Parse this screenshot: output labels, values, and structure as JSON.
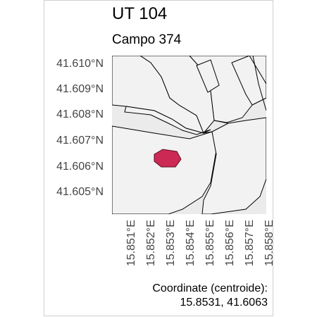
{
  "title": "UT 104",
  "subtitle": "Campo 374",
  "axis": {
    "y_ticks": [
      "41.610°N",
      "41.609°N",
      "41.608°N",
      "41.607°N",
      "41.606°N",
      "41.605°N"
    ],
    "x_ticks": [
      "15.851°E",
      "15.852°E",
      "15.853°E",
      "15.854°E",
      "15.855°E",
      "15.856°E",
      "15.857°E",
      "15.858°E"
    ]
  },
  "map": {
    "background_color": "#ebebeb",
    "parcel_fill": "#f2f2f2",
    "parcel_stroke": "#000000",
    "highlight_fill": "#cc2a55",
    "highlight_stroke": "#5a0f22"
  },
  "caption": {
    "line1": "Coordinate (centroide):",
    "line2": "15.8531, 41.6063"
  }
}
